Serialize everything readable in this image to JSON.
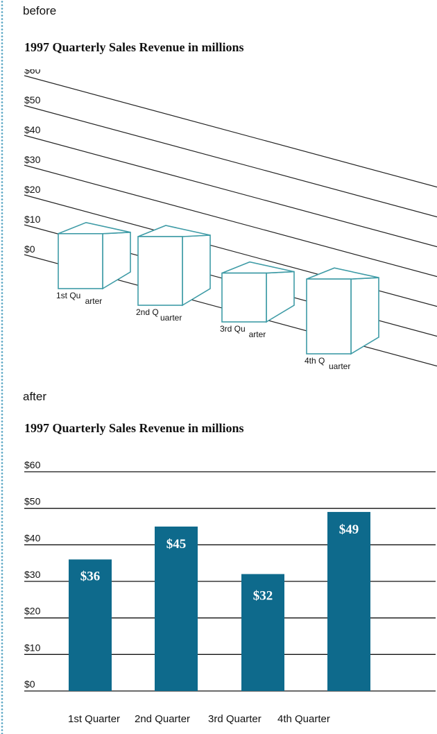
{
  "before": {
    "section_label": "before",
    "chart_data": {
      "type": "bar",
      "title": "1997 Quarterly Sales Revenue in millions",
      "style": "3d",
      "yticks": [
        "$0",
        "$10",
        "$20",
        "$30",
        "$40",
        "$50",
        "$60"
      ],
      "ylim": [
        0,
        60
      ],
      "categories": [
        [
          "1st Qu",
          "arter"
        ],
        [
          "2nd Q",
          "uarter"
        ],
        [
          "3rd Qu",
          "arter"
        ],
        [
          "4th Q",
          "uarter"
        ]
      ],
      "values": [
        36,
        45,
        32,
        49
      ],
      "color": "#3e9ba6"
    }
  },
  "after": {
    "section_label": "after",
    "chart_data": {
      "type": "bar",
      "title": "1997 Quarterly Sales Revenue in millions",
      "yticks": [
        "$0",
        "$10",
        "$20",
        "$30",
        "$40",
        "$50",
        "$60"
      ],
      "ylim": [
        0,
        60
      ],
      "categories": [
        "1st Quarter",
        "2nd Quarter",
        "3rd Quarter",
        "4th Quarter"
      ],
      "values": [
        36,
        45,
        32,
        49
      ],
      "value_labels": [
        "$36",
        "$45",
        "$32",
        "$49"
      ],
      "color": "#0e6a8c",
      "grid": true
    }
  }
}
